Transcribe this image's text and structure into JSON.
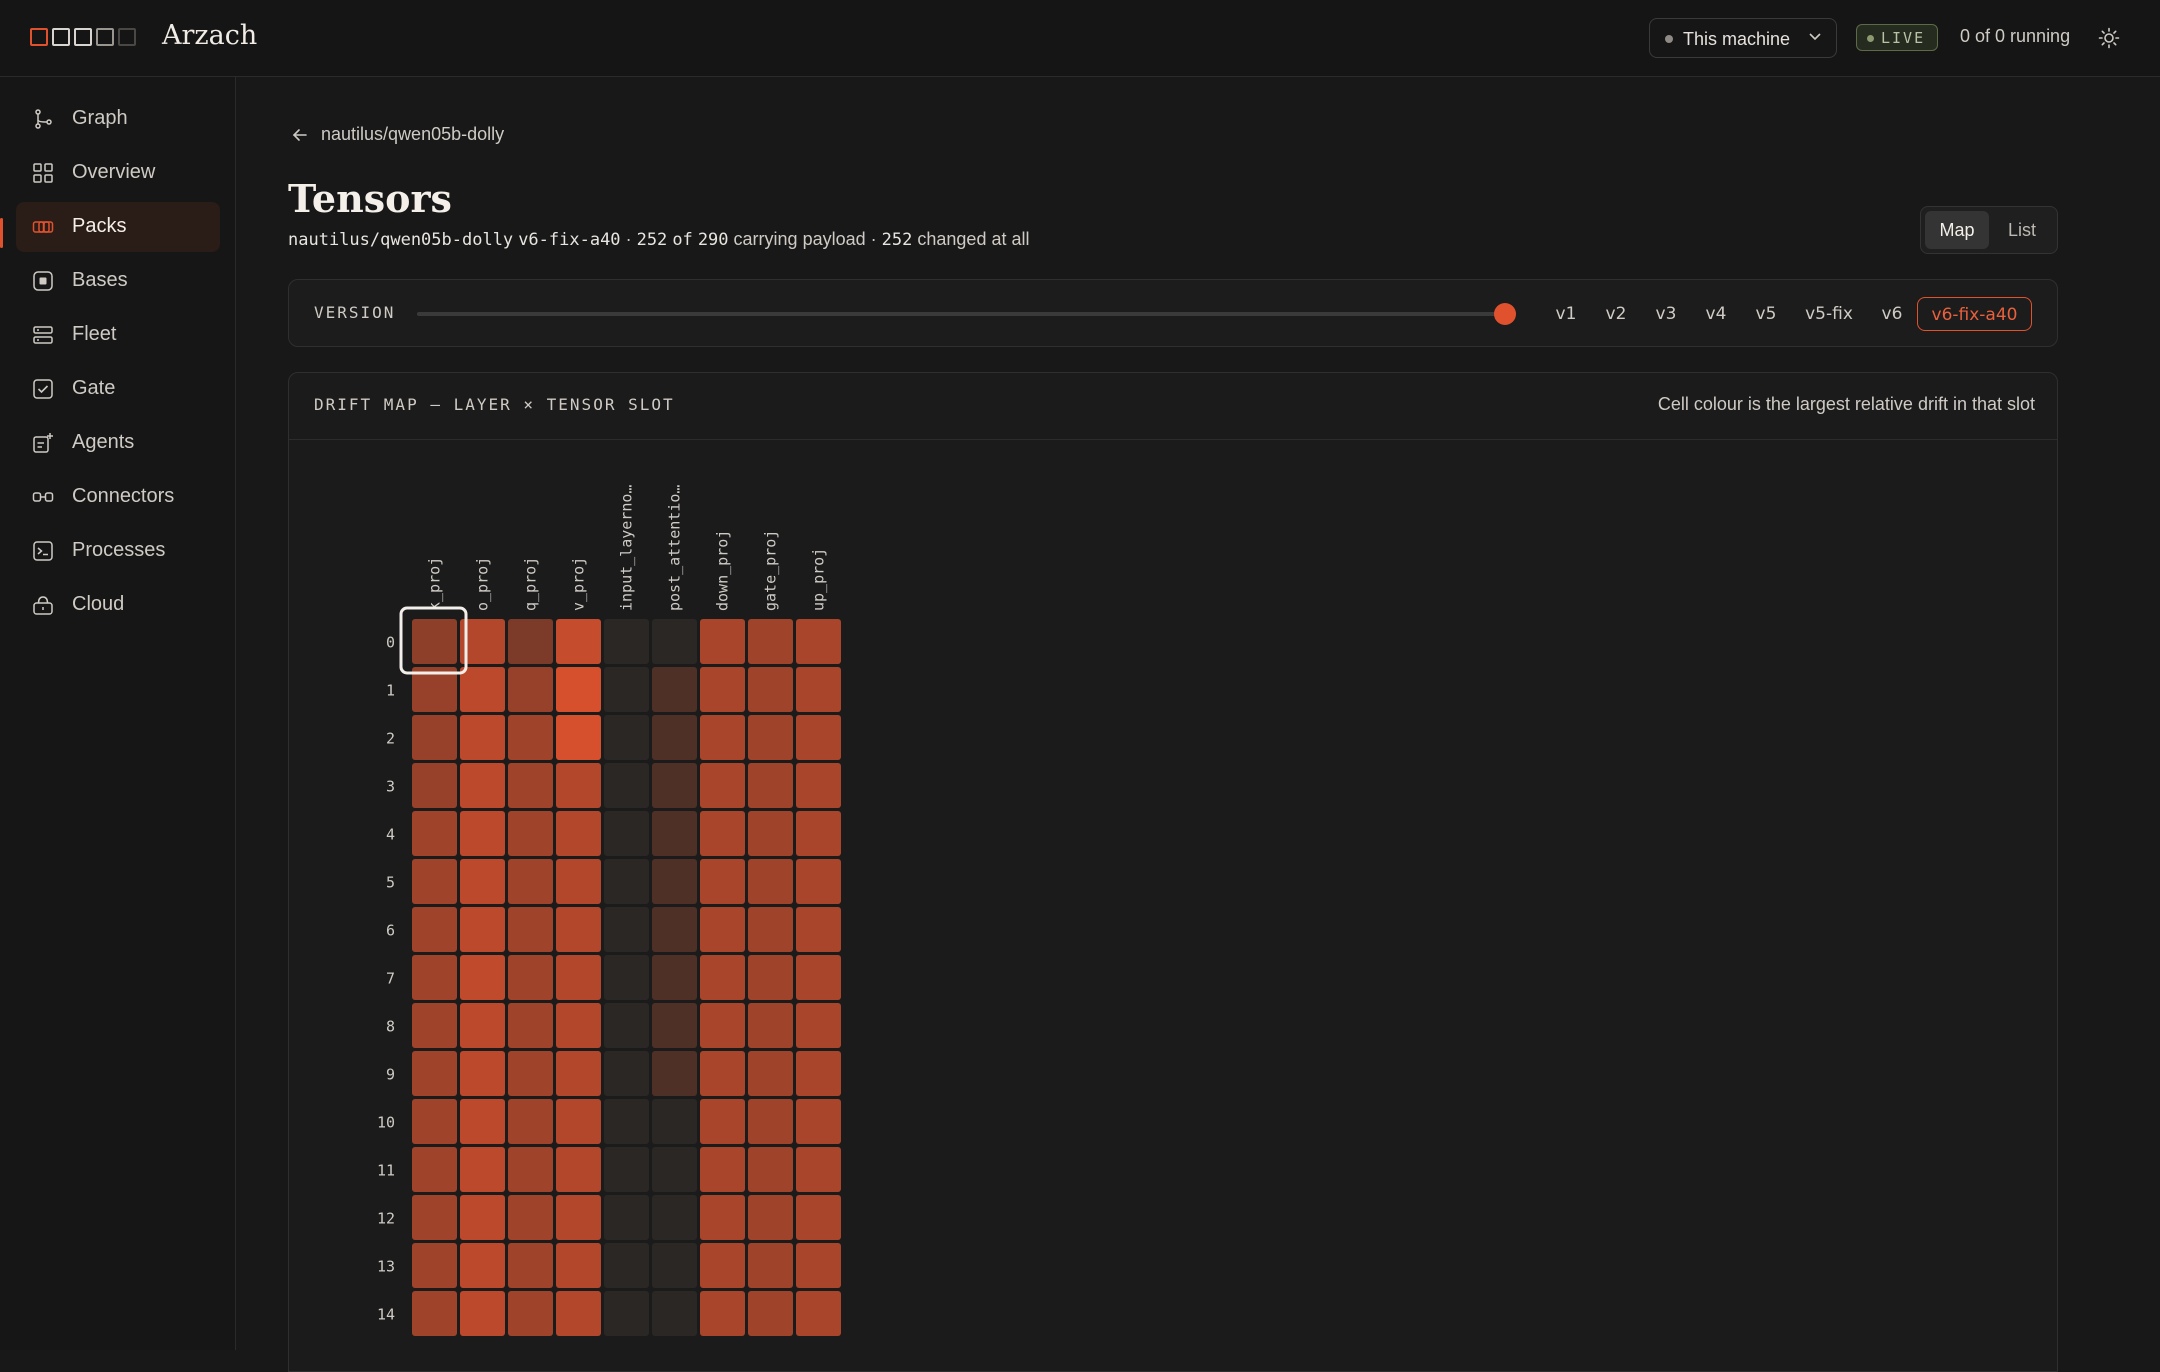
{
  "app": {
    "title": "Arzach",
    "machine_select": "This machine",
    "live_badge": "LIVE",
    "running_status": "0 of 0 running"
  },
  "sidebar": {
    "items": [
      {
        "label": "Graph",
        "icon": "graph-icon"
      },
      {
        "label": "Overview",
        "icon": "grid-icon"
      },
      {
        "label": "Packs",
        "icon": "packs-icon",
        "active": true
      },
      {
        "label": "Bases",
        "icon": "bases-icon"
      },
      {
        "label": "Fleet",
        "icon": "fleet-icon"
      },
      {
        "label": "Gate",
        "icon": "gate-icon"
      },
      {
        "label": "Agents",
        "icon": "agents-icon"
      },
      {
        "label": "Connectors",
        "icon": "connectors-icon"
      },
      {
        "label": "Processes",
        "icon": "terminal-icon"
      },
      {
        "label": "Cloud",
        "icon": "cloud-lock-icon"
      }
    ]
  },
  "page": {
    "back_label": "nautilus/qwen05b-dolly",
    "title": "Tensors",
    "subtitle": {
      "repo": "nautilus/qwen05b-dolly",
      "version": "v6-fix-a40",
      "carrying": "252",
      "of_word": "of",
      "total": "290",
      "carrying_text": "carrying payload",
      "changed": "252",
      "changed_text": "changed at all",
      "separator": "·"
    },
    "view_toggle": {
      "map": "Map",
      "list": "List",
      "selected": "Map"
    }
  },
  "version_slider": {
    "label": "VERSION",
    "versions": [
      "v1",
      "v2",
      "v3",
      "v4",
      "v5",
      "v5-fix",
      "v6",
      "v6-fix-a40"
    ],
    "selected": "v6-fix-a40",
    "accent": "#e0522e"
  },
  "drift_map": {
    "title": "DRIFT MAP — LAYER × TENSOR SLOT",
    "note": "Cell colour is the largest relative drift in that slot"
  },
  "chart_data": {
    "type": "heatmap",
    "columns": [
      "k_proj",
      "o_proj",
      "q_proj",
      "v_proj",
      "input_layerno…",
      "post_attentio…",
      "down_proj",
      "gate_proj",
      "up_proj"
    ],
    "rows": [
      "0",
      "1",
      "2",
      "3",
      "4",
      "5",
      "6",
      "7",
      "8",
      "9",
      "10",
      "11",
      "12",
      "13",
      "14"
    ],
    "selected_cell": {
      "row": "0",
      "column": "k_proj"
    },
    "values": [
      [
        0.55,
        0.75,
        0.45,
        0.85,
        0.0,
        0.0,
        0.7,
        0.65,
        0.7
      ],
      [
        0.6,
        0.8,
        0.6,
        0.95,
        0.0,
        0.2,
        0.7,
        0.65,
        0.7
      ],
      [
        0.6,
        0.8,
        0.65,
        0.95,
        0.0,
        0.2,
        0.7,
        0.65,
        0.7
      ],
      [
        0.6,
        0.8,
        0.65,
        0.75,
        0.0,
        0.2,
        0.7,
        0.65,
        0.7
      ],
      [
        0.65,
        0.8,
        0.65,
        0.75,
        0.0,
        0.2,
        0.7,
        0.65,
        0.7
      ],
      [
        0.65,
        0.8,
        0.65,
        0.75,
        0.0,
        0.2,
        0.7,
        0.65,
        0.7
      ],
      [
        0.65,
        0.8,
        0.65,
        0.75,
        0.0,
        0.2,
        0.7,
        0.65,
        0.7
      ],
      [
        0.65,
        0.82,
        0.65,
        0.75,
        0.0,
        0.2,
        0.7,
        0.65,
        0.7
      ],
      [
        0.65,
        0.8,
        0.65,
        0.75,
        0.0,
        0.2,
        0.7,
        0.65,
        0.7
      ],
      [
        0.65,
        0.8,
        0.65,
        0.75,
        0.0,
        0.2,
        0.7,
        0.65,
        0.7
      ],
      [
        0.65,
        0.8,
        0.65,
        0.75,
        0.0,
        0.0,
        0.7,
        0.65,
        0.7
      ],
      [
        0.65,
        0.8,
        0.65,
        0.75,
        0.0,
        0.0,
        0.7,
        0.65,
        0.7
      ],
      [
        0.65,
        0.8,
        0.65,
        0.75,
        0.0,
        0.0,
        0.7,
        0.65,
        0.7
      ],
      [
        0.65,
        0.8,
        0.65,
        0.75,
        0.0,
        0.0,
        0.7,
        0.65,
        0.7
      ],
      [
        0.65,
        0.8,
        0.65,
        0.75,
        0.0,
        0.0,
        0.7,
        0.65,
        0.7
      ]
    ],
    "colors": {
      "low": "#2a2725",
      "high": "#e0522e"
    }
  }
}
